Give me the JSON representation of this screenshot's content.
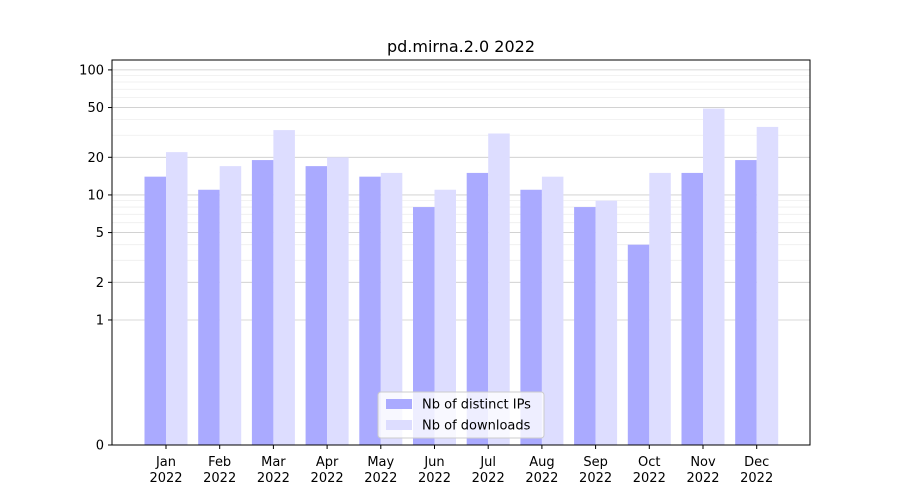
{
  "chart_data": {
    "type": "bar",
    "title": "pd.mirna.2.0 2022",
    "xlabel": "",
    "ylabel": "",
    "y_scale": "symlog",
    "ylim": [
      0,
      120
    ],
    "y_ticks": [
      0,
      1,
      2,
      5,
      10,
      20,
      50,
      100
    ],
    "grid": "horizontal",
    "legend_position": "bottom-center",
    "categories": [
      [
        "Jan",
        "2022"
      ],
      [
        "Feb",
        "2022"
      ],
      [
        "Mar",
        "2022"
      ],
      [
        "Apr",
        "2022"
      ],
      [
        "May",
        "2022"
      ],
      [
        "Jun",
        "2022"
      ],
      [
        "Jul",
        "2022"
      ],
      [
        "Aug",
        "2022"
      ],
      [
        "Sep",
        "2022"
      ],
      [
        "Oct",
        "2022"
      ],
      [
        "Nov",
        "2022"
      ],
      [
        "Dec",
        "2022"
      ]
    ],
    "series": [
      {
        "name": "Nb of distinct IPs",
        "color": "#aaaaff",
        "values": [
          14,
          11,
          19,
          17,
          14,
          8,
          15,
          11,
          8,
          4,
          15,
          19
        ]
      },
      {
        "name": "Nb of downloads",
        "color": "#ddddff",
        "values": [
          22,
          17,
          33,
          20,
          15,
          11,
          31,
          14,
          9,
          15,
          49,
          35
        ]
      }
    ]
  }
}
